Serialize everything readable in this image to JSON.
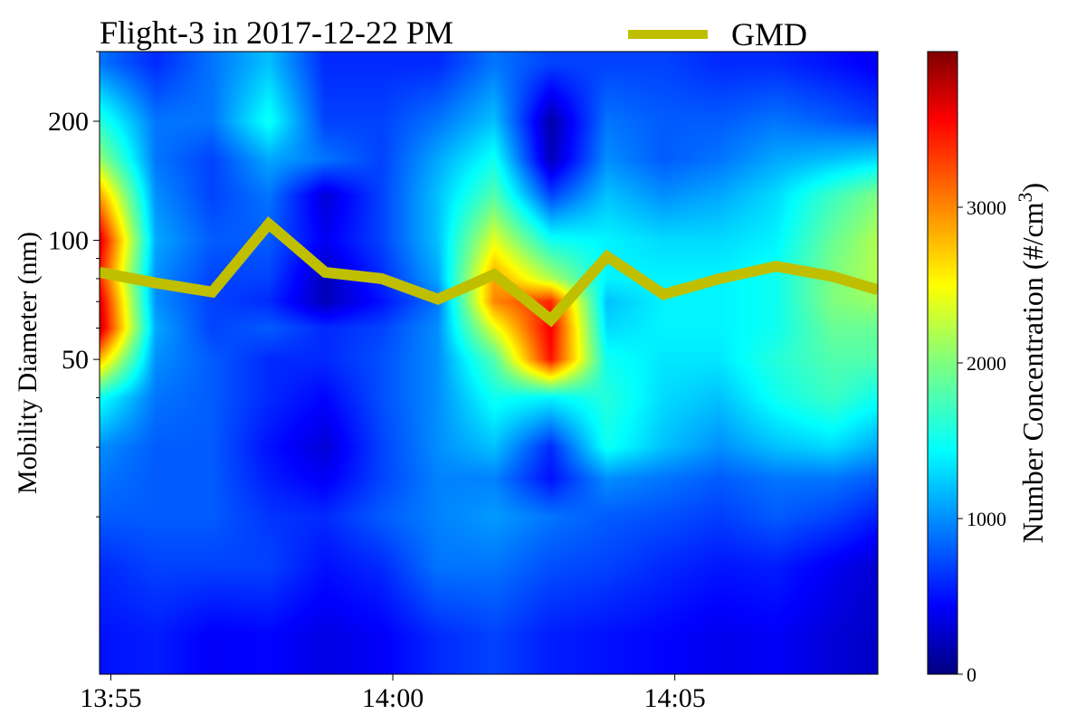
{
  "chart_data": {
    "type": "heatmap",
    "title": "Flight-3 in 2017-12-22 PM",
    "xlabel": "",
    "ylabel": "Mobility Diameter (nm)",
    "x_ticks": [
      "13:55",
      "14:00",
      "14:05"
    ],
    "y_scale": "log",
    "y_ticks": [
      "50",
      "100",
      "200"
    ],
    "x_times": [
      "13:54.8",
      "13:55.8",
      "13:56.8",
      "13:57.8",
      "13:58.8",
      "13:59.8",
      "14:00.8",
      "14:01.8",
      "14:02.8",
      "14:03.8",
      "14:04.8",
      "14:05.8",
      "14:06.8",
      "14:07.8",
      "14:08.6"
    ],
    "y_diameters": [
      10,
      15,
      20,
      25,
      30,
      40,
      50,
      60,
      70,
      80,
      100,
      130,
      160,
      200,
      280
    ],
    "z_concentration": [
      [
        500,
        550,
        420,
        450,
        350,
        420,
        600,
        700,
        550,
        500,
        450,
        380,
        420,
        300,
        250
      ],
      [
        600,
        700,
        700,
        700,
        500,
        600,
        900,
        900,
        750,
        700,
        600,
        520,
        550,
        400,
        280
      ],
      [
        800,
        800,
        800,
        650,
        600,
        800,
        950,
        1050,
        900,
        800,
        750,
        680,
        800,
        700,
        550
      ],
      [
        900,
        800,
        800,
        550,
        400,
        700,
        950,
        950,
        500,
        1000,
        900,
        800,
        900,
        900,
        800
      ],
      [
        1000,
        800,
        800,
        500,
        300,
        700,
        1000,
        1200,
        600,
        1500,
        1200,
        1000,
        1200,
        1300,
        1100
      ],
      [
        1500,
        900,
        800,
        600,
        450,
        750,
        1000,
        1500,
        1400,
        1600,
        1300,
        1200,
        1500,
        1700,
        1500
      ],
      [
        2800,
        1000,
        800,
        600,
        600,
        750,
        1000,
        1800,
        3500,
        1500,
        1350,
        1350,
        1600,
        1800,
        1800
      ],
      [
        3800,
        1100,
        700,
        800,
        600,
        700,
        1000,
        2400,
        3600,
        1300,
        1400,
        1400,
        1500,
        1900,
        1900
      ],
      [
        3700,
        1000,
        700,
        600,
        200,
        500,
        900,
        3000,
        3400,
        1200,
        1400,
        1400,
        1500,
        2000,
        2100
      ],
      [
        3400,
        1000,
        700,
        700,
        200,
        600,
        1100,
        2900,
        2200,
        1400,
        1400,
        1400,
        1500,
        2000,
        2200
      ],
      [
        3700,
        1100,
        800,
        800,
        400,
        700,
        1200,
        2400,
        1500,
        1400,
        1300,
        1300,
        1400,
        1900,
        2200
      ],
      [
        2900,
        1000,
        700,
        900,
        300,
        700,
        1200,
        1800,
        700,
        1200,
        1000,
        1100,
        1300,
        1700,
        2000
      ],
      [
        2100,
        900,
        700,
        1100,
        900,
        700,
        1100,
        1500,
        200,
        1000,
        800,
        900,
        1100,
        1200,
        1300
      ],
      [
        1600,
        900,
        900,
        1500,
        700,
        700,
        900,
        1200,
        150,
        900,
        800,
        800,
        900,
        800,
        700
      ],
      [
        900,
        600,
        900,
        1200,
        600,
        600,
        600,
        900,
        700,
        700,
        700,
        600,
        600,
        500,
        400
      ]
    ],
    "gmd_series": {
      "name": "GMD",
      "color": "#bfbf00",
      "x": [
        "13:54.8",
        "13:55.8",
        "13:56.8",
        "13:57.8",
        "13:58.8",
        "13:59.8",
        "14:00.8",
        "14:01.8",
        "14:02.8",
        "14:03.8",
        "14:04.8",
        "14:05.8",
        "14:06.8",
        "14:07.8",
        "14:08.6"
      ],
      "y": [
        83,
        78,
        74,
        110,
        83,
        80,
        71,
        82,
        63,
        91,
        73,
        80,
        86,
        81,
        75
      ]
    },
    "colorbar": {
      "label": "Number Concentration (#/cm",
      "label_sup": "3",
      "label_close": ")",
      "ticks": [
        "0",
        "1000",
        "2000",
        "3000"
      ],
      "max": 4000,
      "colormap": "jet"
    },
    "legend_placement": "top-right",
    "grid": false
  }
}
